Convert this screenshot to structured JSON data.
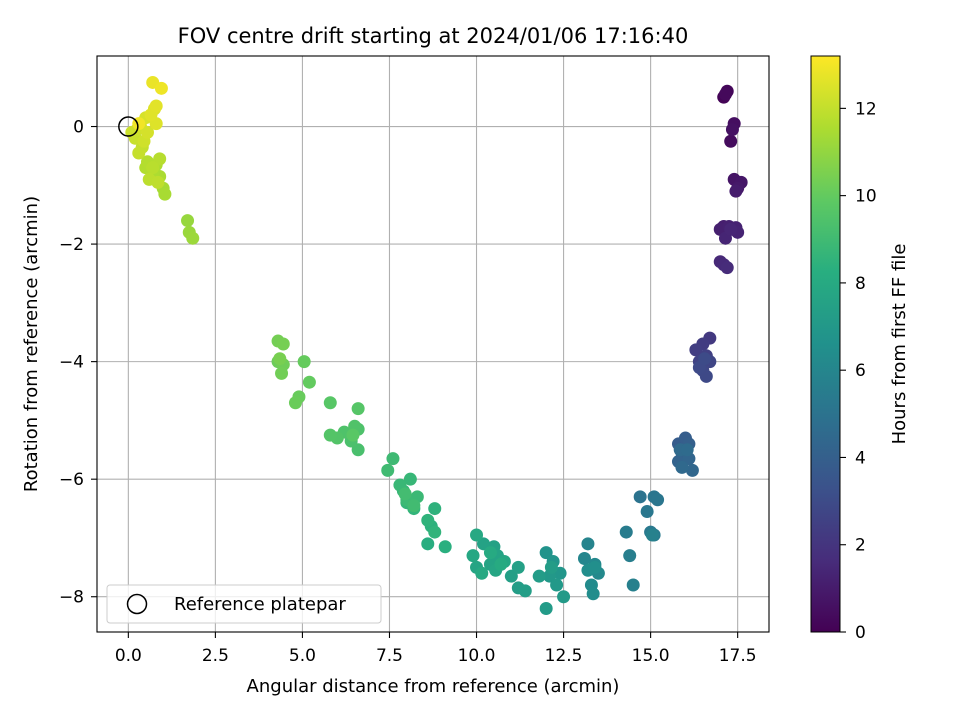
{
  "chart_data": {
    "type": "scatter",
    "title": "FOV centre drift starting at 2024/01/06 17:16:40",
    "xlabel": "Angular distance from reference (arcmin)",
    "ylabel": "Rotation from reference (arcmin)",
    "xlim": [
      -0.9,
      18.4
    ],
    "ylim": [
      -8.6,
      1.2
    ],
    "xticks": [
      0.0,
      2.5,
      5.0,
      7.5,
      10.0,
      12.5,
      15.0,
      17.5
    ],
    "xtick_labels": [
      "0.0",
      "2.5",
      "5.0",
      "7.5",
      "10.0",
      "12.5",
      "15.0",
      "17.5"
    ],
    "yticks": [
      0,
      -2,
      -4,
      -6,
      -8
    ],
    "ytick_labels": [
      "0",
      "−2",
      "−4",
      "−6",
      "−8"
    ],
    "grid": true,
    "legend": {
      "placement": "lower-left",
      "entries": [
        {
          "label": "Reference platepar",
          "marker": "open-circle"
        }
      ]
    },
    "colorbar": {
      "label": "Hours from first FF file",
      "colormap": "viridis",
      "range": [
        0,
        13.2
      ],
      "ticks": [
        0,
        2,
        4,
        6,
        8,
        10,
        12
      ],
      "tick_labels": [
        "0",
        "2",
        "4",
        "6",
        "8",
        "10",
        "12"
      ]
    },
    "reference_point": {
      "x": 0,
      "y": 0
    },
    "points": [
      [
        17.1,
        0.5,
        0.1
      ],
      [
        17.2,
        0.6,
        0.2
      ],
      [
        17.15,
        0.55,
        0.3
      ],
      [
        17.3,
        -0.25,
        0.4
      ],
      [
        17.4,
        0.05,
        0.5
      ],
      [
        17.35,
        -0.05,
        0.6
      ],
      [
        17.4,
        -0.9,
        0.7
      ],
      [
        17.6,
        -0.95,
        0.8
      ],
      [
        17.5,
        -1.05,
        0.9
      ],
      [
        17.45,
        -1.1,
        1.0
      ],
      [
        17.1,
        -1.7,
        1.1
      ],
      [
        17.0,
        -1.75,
        1.15
      ],
      [
        17.25,
        -1.7,
        1.2
      ],
      [
        17.45,
        -1.72,
        1.25
      ],
      [
        17.5,
        -1.8,
        1.3
      ],
      [
        17.15,
        -1.9,
        1.35
      ],
      [
        17.3,
        -1.75,
        1.4
      ],
      [
        17.0,
        -2.3,
        1.5
      ],
      [
        17.1,
        -2.35,
        1.55
      ],
      [
        17.2,
        -2.4,
        1.6
      ],
      [
        16.7,
        -3.6,
        2.2
      ],
      [
        16.5,
        -3.7,
        2.3
      ],
      [
        16.3,
        -3.8,
        2.4
      ],
      [
        16.6,
        -3.9,
        2.5
      ],
      [
        16.4,
        -4.0,
        2.6
      ],
      [
        16.7,
        -4.0,
        2.7
      ],
      [
        16.5,
        -4.15,
        2.8
      ],
      [
        16.6,
        -4.25,
        2.9
      ],
      [
        16.4,
        -4.1,
        2.95
      ],
      [
        16.55,
        -3.95,
        3.0
      ],
      [
        15.8,
        -5.4,
        3.8
      ],
      [
        16.0,
        -5.3,
        3.9
      ],
      [
        16.1,
        -5.4,
        4.0
      ],
      [
        15.9,
        -5.55,
        4.1
      ],
      [
        15.8,
        -5.7,
        4.2
      ],
      [
        16.1,
        -5.65,
        4.3
      ],
      [
        16.2,
        -5.85,
        4.4
      ],
      [
        15.9,
        -5.8,
        4.5
      ],
      [
        15.85,
        -5.5,
        4.55
      ],
      [
        16.05,
        -5.5,
        4.6
      ],
      [
        14.7,
        -6.3,
        5.0
      ],
      [
        15.1,
        -6.3,
        5.1
      ],
      [
        15.2,
        -6.35,
        5.15
      ],
      [
        14.9,
        -6.55,
        5.2
      ],
      [
        15.0,
        -6.9,
        5.3
      ],
      [
        15.1,
        -6.95,
        5.4
      ],
      [
        14.3,
        -6.9,
        5.5
      ],
      [
        14.4,
        -7.3,
        5.6
      ],
      [
        14.5,
        -7.8,
        5.7
      ],
      [
        15.05,
        -6.95,
        5.75
      ],
      [
        13.2,
        -7.1,
        5.9
      ],
      [
        13.1,
        -7.35,
        6.0
      ],
      [
        13.4,
        -7.45,
        6.1
      ],
      [
        13.5,
        -7.6,
        6.2
      ],
      [
        13.3,
        -7.8,
        6.3
      ],
      [
        13.35,
        -7.95,
        6.4
      ],
      [
        13.2,
        -7.55,
        6.45
      ],
      [
        13.4,
        -7.5,
        6.5
      ],
      [
        12.0,
        -7.25,
        6.7
      ],
      [
        12.2,
        -7.4,
        6.8
      ],
      [
        12.4,
        -7.6,
        6.9
      ],
      [
        12.1,
        -7.65,
        7.0
      ],
      [
        12.3,
        -7.8,
        7.05
      ],
      [
        12.5,
        -8.0,
        7.1
      ],
      [
        12.0,
        -8.2,
        7.15
      ],
      [
        11.8,
        -7.65,
        7.2
      ],
      [
        12.15,
        -7.5,
        7.25
      ],
      [
        11.2,
        -7.85,
        7.3
      ],
      [
        11.4,
        -7.9,
        7.35
      ],
      [
        11.0,
        -7.65,
        7.4
      ],
      [
        11.2,
        -7.5,
        7.45
      ],
      [
        10.5,
        -7.15,
        7.5
      ],
      [
        10.2,
        -7.1,
        7.55
      ],
      [
        10.6,
        -7.3,
        7.6
      ],
      [
        10.4,
        -7.45,
        7.65
      ],
      [
        10.0,
        -7.5,
        7.7
      ],
      [
        10.55,
        -7.55,
        7.75
      ],
      [
        10.8,
        -7.4,
        7.8
      ],
      [
        9.9,
        -7.3,
        7.85
      ],
      [
        10.0,
        -6.95,
        7.9
      ],
      [
        10.15,
        -7.6,
        7.95
      ],
      [
        10.4,
        -7.25,
        8.0
      ],
      [
        10.7,
        -7.45,
        8.05
      ],
      [
        8.6,
        -7.1,
        8.2
      ],
      [
        9.1,
        -7.15,
        8.3
      ],
      [
        8.7,
        -6.8,
        8.4
      ],
      [
        8.8,
        -6.5,
        8.45
      ],
      [
        8.6,
        -6.7,
        8.5
      ],
      [
        8.8,
        -6.9,
        8.55
      ],
      [
        8.2,
        -6.5,
        8.6
      ],
      [
        8.0,
        -6.4,
        8.65
      ],
      [
        7.9,
        -6.2,
        8.7
      ],
      [
        8.1,
        -6.0,
        8.75
      ],
      [
        7.8,
        -6.1,
        8.8
      ],
      [
        8.3,
        -6.3,
        8.85
      ],
      [
        8.0,
        -6.35,
        8.9
      ],
      [
        7.6,
        -5.65,
        8.95
      ],
      [
        7.45,
        -5.85,
        9.0
      ],
      [
        8.2,
        -6.45,
        9.05
      ],
      [
        7.95,
        -6.25,
        9.1
      ],
      [
        6.6,
        -5.5,
        9.3
      ],
      [
        6.4,
        -5.35,
        9.35
      ],
      [
        6.6,
        -5.15,
        9.4
      ],
      [
        6.2,
        -5.2,
        9.45
      ],
      [
        6.5,
        -5.1,
        9.5
      ],
      [
        6.0,
        -5.3,
        9.55
      ],
      [
        5.8,
        -5.25,
        9.6
      ],
      [
        6.6,
        -4.8,
        9.65
      ],
      [
        5.8,
        -4.7,
        9.7
      ],
      [
        6.45,
        -5.25,
        9.75
      ],
      [
        5.2,
        -4.35,
        10.0
      ],
      [
        5.05,
        -4.0,
        10.05
      ],
      [
        4.9,
        -4.6,
        10.1
      ],
      [
        4.8,
        -4.7,
        10.15
      ],
      [
        4.3,
        -4.0,
        10.2
      ],
      [
        4.45,
        -4.05,
        10.25
      ],
      [
        4.4,
        -4.2,
        10.3
      ],
      [
        4.3,
        -3.65,
        10.35
      ],
      [
        4.45,
        -3.7,
        10.4
      ],
      [
        4.35,
        -3.95,
        10.45
      ],
      [
        1.7,
        -1.6,
        11.1
      ],
      [
        1.75,
        -1.8,
        11.15
      ],
      [
        1.85,
        -1.9,
        11.2
      ],
      [
        1.0,
        -1.05,
        11.4
      ],
      [
        1.05,
        -1.15,
        11.45
      ],
      [
        0.9,
        -0.85,
        11.5
      ],
      [
        0.7,
        -0.8,
        11.55
      ],
      [
        0.8,
        -0.65,
        11.6
      ],
      [
        0.5,
        -0.7,
        11.65
      ],
      [
        0.55,
        -0.6,
        11.7
      ],
      [
        0.9,
        -0.55,
        11.75
      ],
      [
        0.7,
        -0.7,
        11.8
      ],
      [
        0.6,
        -0.9,
        11.85
      ],
      [
        0.85,
        -0.95,
        11.9
      ],
      [
        0.4,
        -0.35,
        12.0
      ],
      [
        0.3,
        -0.45,
        12.05
      ],
      [
        0.2,
        -0.2,
        12.1
      ],
      [
        0.1,
        -0.1,
        12.15
      ],
      [
        0.25,
        -0.05,
        12.2
      ],
      [
        0.45,
        -0.25,
        12.25
      ],
      [
        0.35,
        0.0,
        12.3
      ],
      [
        0.55,
        -0.1,
        12.35
      ],
      [
        0.5,
        0.15,
        12.4
      ],
      [
        0.75,
        0.3,
        12.5
      ],
      [
        0.8,
        0.05,
        12.55
      ],
      [
        0.65,
        0.2,
        12.6
      ],
      [
        0.8,
        0.35,
        12.65
      ],
      [
        0.7,
        0.75,
        12.8
      ],
      [
        0.95,
        0.65,
        12.9
      ],
      [
        0.3,
        0.05,
        12.95
      ]
    ]
  }
}
